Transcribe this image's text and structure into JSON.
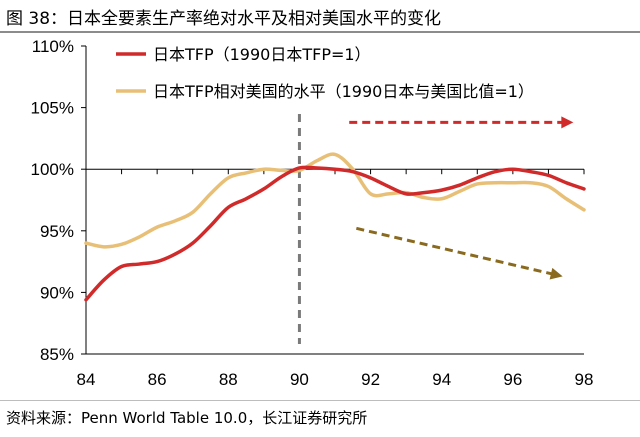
{
  "header": {
    "title": "图 38：日本全要素生产率绝对水平及相对美国水平的变化"
  },
  "footer": {
    "source": "资料来源：Penn World Table 10.0，长江证券研究所"
  },
  "chart_data": {
    "type": "line",
    "title": "",
    "xlabel": "",
    "ylabel": "",
    "xlim": [
      84,
      98
    ],
    "ylim": [
      85,
      110
    ],
    "x_ticks": [
      "84",
      "86",
      "88",
      "90",
      "92",
      "94",
      "96",
      "98"
    ],
    "y_ticks": [
      "85%",
      "90%",
      "95%",
      "100%",
      "105%",
      "110%"
    ],
    "grid": false,
    "legend_position": "top",
    "series": [
      {
        "name": "日本TFP（1990日本TFP=1）",
        "color": "#d12a2a",
        "x": [
          84,
          84.5,
          85,
          85.5,
          86,
          86.5,
          87,
          87.5,
          88,
          88.5,
          89,
          89.5,
          90,
          90.5,
          91,
          91.5,
          92,
          92.5,
          93,
          93.5,
          94,
          94.5,
          95,
          95.5,
          96,
          96.5,
          97,
          97.5,
          98
        ],
        "y": [
          89.4,
          91.0,
          92.1,
          92.3,
          92.5,
          93.1,
          94.0,
          95.4,
          96.9,
          97.6,
          98.4,
          99.4,
          100.1,
          100.1,
          100.0,
          99.8,
          99.3,
          98.6,
          98.0,
          98.1,
          98.3,
          98.7,
          99.3,
          99.8,
          100.0,
          99.8,
          99.5,
          98.9,
          98.4
        ]
      },
      {
        "name": "日本TFP相对美国的水平（1990日本与美国比值=1）",
        "color": "#e8bf76",
        "x": [
          84,
          84.5,
          85,
          85.5,
          86,
          86.5,
          87,
          87.5,
          88,
          88.5,
          89,
          89.5,
          90,
          90.5,
          91,
          91.5,
          92,
          92.5,
          93,
          93.5,
          94,
          94.5,
          95,
          95.5,
          96,
          96.5,
          97,
          97.5,
          98
        ],
        "y": [
          94.0,
          93.7,
          93.9,
          94.5,
          95.3,
          95.8,
          96.5,
          98.0,
          99.3,
          99.7,
          100.0,
          99.9,
          99.9,
          100.7,
          101.2,
          100.0,
          98.0,
          98.0,
          98.1,
          97.7,
          97.6,
          98.2,
          98.8,
          98.9,
          98.9,
          98.9,
          98.6,
          97.6,
          96.7
        ]
      }
    ],
    "annotations": [
      {
        "type": "vertical-dashed-line",
        "x": 90,
        "color": "#7a7a7a"
      },
      {
        "type": "dashed-arrow",
        "from": [
          91.4,
          103.8
        ],
        "to": [
          97.7,
          103.8
        ],
        "color": "#d12a2a"
      },
      {
        "type": "dashed-arrow",
        "from": [
          91.6,
          95.2
        ],
        "to": [
          97.4,
          91.3
        ],
        "color": "#8a6a1e"
      }
    ]
  }
}
